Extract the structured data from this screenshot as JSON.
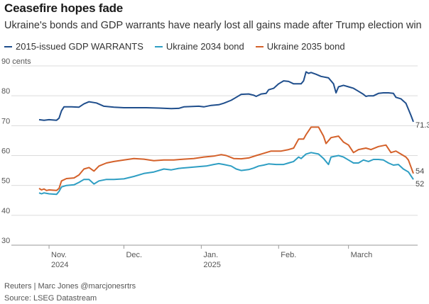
{
  "title": "Ceasefire hopes fade",
  "subtitle": "Ukraine's bonds and GDP warrants have nearly lost all gains made after Trump election win",
  "credit": "Reuters | Marc Jones @marcjonesrtrs",
  "source": "Source: LSEG Datastream",
  "colors": {
    "warrants": "#1f4e8c",
    "bond2034": "#2e9ec3",
    "bond2035": "#d4612a"
  },
  "chart_data": {
    "type": "line",
    "x_start": "2024-10-28",
    "x_end": "2025-03-27",
    "ylim": [
      30,
      90
    ],
    "yticks": [
      {
        "value": 90,
        "label": "90 cents"
      },
      {
        "value": 80,
        "label": "80"
      },
      {
        "value": 70,
        "label": "70"
      },
      {
        "value": 60,
        "label": "60"
      },
      {
        "value": 50,
        "label": "50"
      },
      {
        "value": 40,
        "label": "40"
      },
      {
        "value": 30,
        "label": "30"
      }
    ],
    "xticks": [
      {
        "date": "2024-11-01",
        "label": "Nov.",
        "sublabel": "2024"
      },
      {
        "date": "2024-12-01",
        "label": "Dec.",
        "sublabel": ""
      },
      {
        "date": "2025-01-01",
        "label": "Jan.",
        "sublabel": "2025"
      },
      {
        "date": "2025-02-01",
        "label": "Feb.",
        "sublabel": ""
      },
      {
        "date": "2025-03-01",
        "label": "March",
        "sublabel": ""
      }
    ],
    "grid": true,
    "legend_position": "top-left",
    "series": [
      {
        "name": "2015-issued GDP WARRANTS",
        "color_key": "warrants",
        "end_label": "71.3",
        "points": [
          [
            "2024-10-28",
            72.0
          ],
          [
            "2024-10-30",
            71.8
          ],
          [
            "2024-11-01",
            72.0
          ],
          [
            "2024-11-04",
            71.8
          ],
          [
            "2024-11-05",
            72.5
          ],
          [
            "2024-11-06",
            75.0
          ],
          [
            "2024-11-07",
            76.3
          ],
          [
            "2024-11-10",
            76.3
          ],
          [
            "2024-11-13",
            76.2
          ],
          [
            "2024-11-15",
            77.3
          ],
          [
            "2024-11-17",
            78.0
          ],
          [
            "2024-11-20",
            77.6
          ],
          [
            "2024-11-23",
            76.5
          ],
          [
            "2024-11-27",
            76.2
          ],
          [
            "2024-12-01",
            76.0
          ],
          [
            "2024-12-05",
            76.0
          ],
          [
            "2024-12-10",
            76.0
          ],
          [
            "2024-12-15",
            75.9
          ],
          [
            "2024-12-20",
            75.7
          ],
          [
            "2024-12-23",
            75.8
          ],
          [
            "2024-12-25",
            76.3
          ],
          [
            "2024-12-31",
            76.5
          ],
          [
            "2025-01-02",
            76.3
          ],
          [
            "2025-01-05",
            76.8
          ],
          [
            "2025-01-08",
            77.0
          ],
          [
            "2025-01-10",
            77.5
          ],
          [
            "2025-01-13",
            78.5
          ],
          [
            "2025-01-15",
            79.5
          ],
          [
            "2025-01-17",
            80.5
          ],
          [
            "2025-01-20",
            80.6
          ],
          [
            "2025-01-22",
            80.2
          ],
          [
            "2025-01-23",
            79.8
          ],
          [
            "2025-01-25",
            80.6
          ],
          [
            "2025-01-27",
            80.8
          ],
          [
            "2025-01-28",
            82.0
          ],
          [
            "2025-01-30",
            82.5
          ],
          [
            "2025-02-01",
            84.0
          ],
          [
            "2025-02-03",
            85.0
          ],
          [
            "2025-02-05",
            84.8
          ],
          [
            "2025-02-07",
            84.0
          ],
          [
            "2025-02-10",
            84.0
          ],
          [
            "2025-02-11",
            85.0
          ],
          [
            "2025-02-12",
            88.0
          ],
          [
            "2025-02-13",
            87.5
          ],
          [
            "2025-02-14",
            87.8
          ],
          [
            "2025-02-16",
            87.2
          ],
          [
            "2025-02-18",
            86.5
          ],
          [
            "2025-02-21",
            86.0
          ],
          [
            "2025-02-23",
            84.0
          ],
          [
            "2025-02-24",
            81.0
          ],
          [
            "2025-02-25",
            83.0
          ],
          [
            "2025-02-27",
            83.5
          ],
          [
            "2025-03-01",
            83.0
          ],
          [
            "2025-03-03",
            82.5
          ],
          [
            "2025-03-05",
            81.5
          ],
          [
            "2025-03-07",
            80.5
          ],
          [
            "2025-03-08",
            79.8
          ],
          [
            "2025-03-09",
            80.0
          ],
          [
            "2025-03-11",
            80.0
          ],
          [
            "2025-03-13",
            80.8
          ],
          [
            "2025-03-15",
            81.0
          ],
          [
            "2025-03-17",
            81.0
          ],
          [
            "2025-03-19",
            80.8
          ],
          [
            "2025-03-20",
            79.5
          ],
          [
            "2025-03-22",
            79.0
          ],
          [
            "2025-03-24",
            77.5
          ],
          [
            "2025-03-25",
            75.5
          ],
          [
            "2025-03-26",
            73.5
          ],
          [
            "2025-03-27",
            71.3
          ]
        ]
      },
      {
        "name": "Ukraine 2034 bond",
        "color_key": "bond2034",
        "end_label": "52",
        "points": [
          [
            "2024-10-28",
            47.5
          ],
          [
            "2024-10-29",
            47.2
          ],
          [
            "2024-10-30",
            47.5
          ],
          [
            "2024-11-01",
            47.2
          ],
          [
            "2024-11-04",
            47.0
          ],
          [
            "2024-11-05",
            48.0
          ],
          [
            "2024-11-06",
            49.5
          ],
          [
            "2024-11-08",
            50.0
          ],
          [
            "2024-11-11",
            50.2
          ],
          [
            "2024-11-13",
            51.0
          ],
          [
            "2024-11-15",
            52.0
          ],
          [
            "2024-11-17",
            52.0
          ],
          [
            "2024-11-19",
            50.5
          ],
          [
            "2024-11-21",
            51.5
          ],
          [
            "2024-11-24",
            52.0
          ],
          [
            "2024-11-27",
            52.0
          ],
          [
            "2024-12-01",
            52.2
          ],
          [
            "2024-12-05",
            53.0
          ],
          [
            "2024-12-09",
            54.0
          ],
          [
            "2024-12-13",
            54.5
          ],
          [
            "2024-12-17",
            55.5
          ],
          [
            "2024-12-20",
            55.2
          ],
          [
            "2024-12-23",
            55.7
          ],
          [
            "2024-12-27",
            56.0
          ],
          [
            "2024-12-31",
            56.3
          ],
          [
            "2025-01-03",
            56.5
          ],
          [
            "2025-01-06",
            57.0
          ],
          [
            "2025-01-08",
            57.3
          ],
          [
            "2025-01-10",
            57.0
          ],
          [
            "2025-01-13",
            56.5
          ],
          [
            "2025-01-15",
            55.5
          ],
          [
            "2025-01-17",
            55.0
          ],
          [
            "2025-01-20",
            55.3
          ],
          [
            "2025-01-22",
            55.8
          ],
          [
            "2025-01-24",
            56.5
          ],
          [
            "2025-01-26",
            56.8
          ],
          [
            "2025-01-28",
            57.2
          ],
          [
            "2025-01-31",
            57.0
          ],
          [
            "2025-02-03",
            57.0
          ],
          [
            "2025-02-05",
            57.5
          ],
          [
            "2025-02-07",
            58.0
          ],
          [
            "2025-02-09",
            59.5
          ],
          [
            "2025-02-10",
            59.0
          ],
          [
            "2025-02-12",
            60.5
          ],
          [
            "2025-02-14",
            61.0
          ],
          [
            "2025-02-17",
            60.5
          ],
          [
            "2025-02-19",
            59.0
          ],
          [
            "2025-02-21",
            57.0
          ],
          [
            "2025-02-22",
            59.5
          ],
          [
            "2025-02-25",
            60.0
          ],
          [
            "2025-02-27",
            59.5
          ],
          [
            "2025-03-01",
            58.5
          ],
          [
            "2025-03-03",
            57.5
          ],
          [
            "2025-03-05",
            57.5
          ],
          [
            "2025-03-07",
            58.5
          ],
          [
            "2025-03-09",
            58.0
          ],
          [
            "2025-03-11",
            58.7
          ],
          [
            "2025-03-13",
            58.7
          ],
          [
            "2025-03-15",
            58.5
          ],
          [
            "2025-03-17",
            57.5
          ],
          [
            "2025-03-19",
            56.8
          ],
          [
            "2025-03-21",
            57.0
          ],
          [
            "2025-03-23",
            55.5
          ],
          [
            "2025-03-25",
            54.5
          ],
          [
            "2025-03-27",
            52.0
          ]
        ]
      },
      {
        "name": "Ukraine 2035 bond",
        "color_key": "bond2035",
        "end_label": "54",
        "points": [
          [
            "2024-10-28",
            49.0
          ],
          [
            "2024-10-29",
            48.5
          ],
          [
            "2024-10-30",
            48.8
          ],
          [
            "2024-10-31",
            48.3
          ],
          [
            "2024-11-01",
            48.5
          ],
          [
            "2024-11-04",
            48.3
          ],
          [
            "2024-11-05",
            49.0
          ],
          [
            "2024-11-06",
            51.5
          ],
          [
            "2024-11-08",
            52.3
          ],
          [
            "2024-11-11",
            52.5
          ],
          [
            "2024-11-13",
            53.5
          ],
          [
            "2024-11-15",
            55.5
          ],
          [
            "2024-11-17",
            56.0
          ],
          [
            "2024-11-19",
            54.8
          ],
          [
            "2024-11-21",
            56.5
          ],
          [
            "2024-11-24",
            57.5
          ],
          [
            "2024-11-27",
            58.0
          ],
          [
            "2024-12-01",
            58.5
          ],
          [
            "2024-12-05",
            59.0
          ],
          [
            "2024-12-09",
            58.8
          ],
          [
            "2024-12-13",
            58.3
          ],
          [
            "2024-12-17",
            58.5
          ],
          [
            "2024-12-21",
            58.5
          ],
          [
            "2024-12-25",
            58.8
          ],
          [
            "2024-12-29",
            59.0
          ],
          [
            "2025-01-02",
            59.5
          ],
          [
            "2025-01-06",
            59.8
          ],
          [
            "2025-01-09",
            60.3
          ],
          [
            "2025-01-11",
            60.0
          ],
          [
            "2025-01-14",
            59.0
          ],
          [
            "2025-01-17",
            58.9
          ],
          [
            "2025-01-20",
            59.2
          ],
          [
            "2025-01-23",
            60.0
          ],
          [
            "2025-01-25",
            60.5
          ],
          [
            "2025-01-27",
            61.0
          ],
          [
            "2025-01-29",
            61.5
          ],
          [
            "2025-02-02",
            61.5
          ],
          [
            "2025-02-05",
            62.0
          ],
          [
            "2025-02-07",
            62.5
          ],
          [
            "2025-02-09",
            65.5
          ],
          [
            "2025-02-11",
            65.5
          ],
          [
            "2025-02-12",
            67.0
          ],
          [
            "2025-02-14",
            69.5
          ],
          [
            "2025-02-17",
            69.5
          ],
          [
            "2025-02-19",
            66.5
          ],
          [
            "2025-02-20",
            64.0
          ],
          [
            "2025-02-22",
            66.0
          ],
          [
            "2025-02-25",
            66.5
          ],
          [
            "2025-02-27",
            64.5
          ],
          [
            "2025-03-01",
            63.5
          ],
          [
            "2025-03-03",
            61.0
          ],
          [
            "2025-03-05",
            62.0
          ],
          [
            "2025-03-08",
            62.5
          ],
          [
            "2025-03-10",
            62.0
          ],
          [
            "2025-03-13",
            63.0
          ],
          [
            "2025-03-16",
            63.5
          ],
          [
            "2025-03-18",
            61.0
          ],
          [
            "2025-03-20",
            61.5
          ],
          [
            "2025-03-22",
            60.5
          ],
          [
            "2025-03-24",
            59.5
          ],
          [
            "2025-03-25",
            58.5
          ],
          [
            "2025-03-27",
            54.0
          ]
        ]
      }
    ]
  }
}
